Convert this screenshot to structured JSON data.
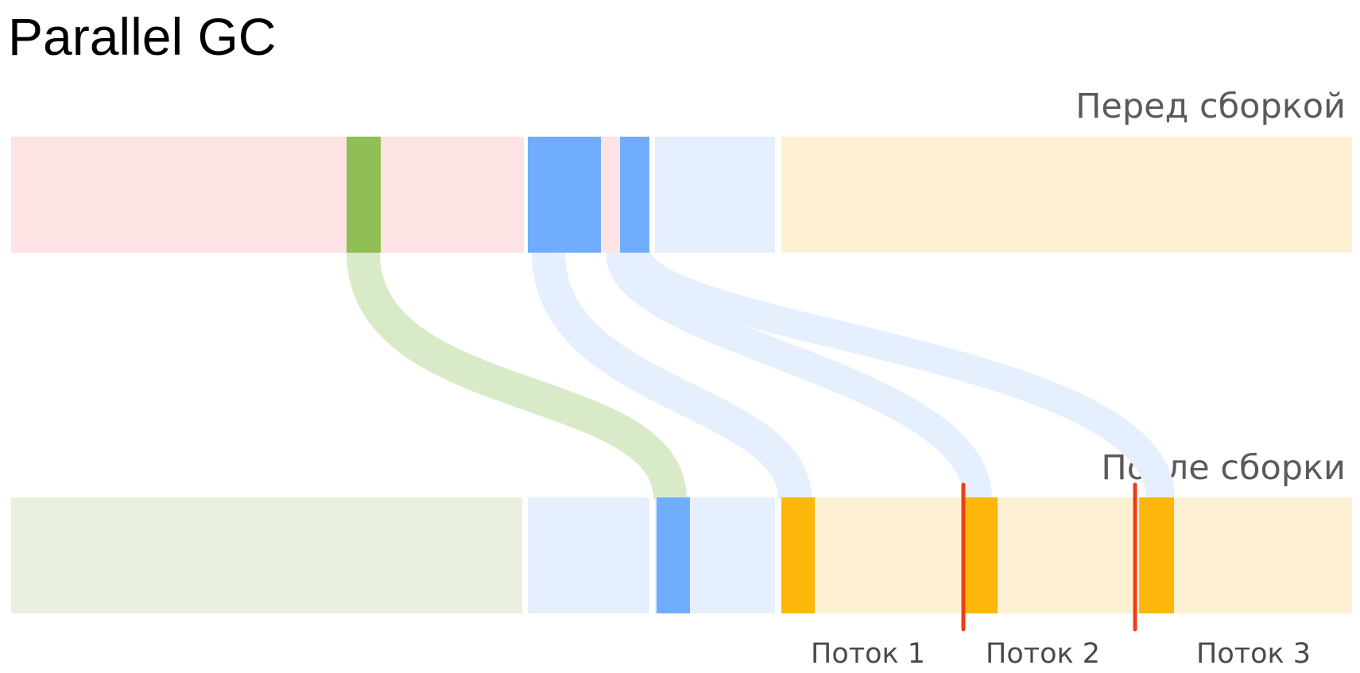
{
  "title": "Parallel GC",
  "labels": {
    "before": "Перед сборкой",
    "after": "После сборки"
  },
  "threads": [
    "Поток 1",
    "Поток 2",
    "Поток 3"
  ],
  "colors": {
    "old_gen_fill": "#fde3e4",
    "live_object_green": "#8fbf55",
    "live_object_blue": "#70aefd",
    "region_blue_light": "#e6effd",
    "region_orange_light": "#fef0d3",
    "region_green_light": "#eaf0e0",
    "allocated_orange": "#fdb60a",
    "thread_boundary": "#ee3e16",
    "flow_green": "#d9eac9",
    "flow_blue": "#e6effd"
  }
}
